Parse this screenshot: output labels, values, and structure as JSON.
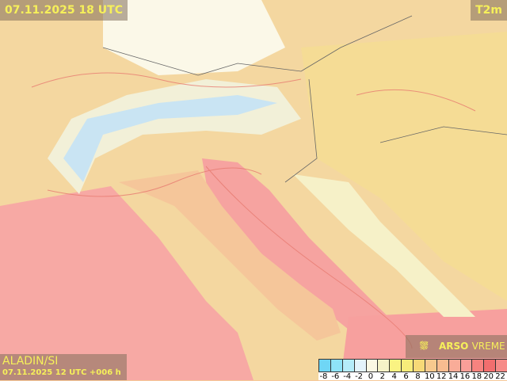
{
  "title": "07.11.2025 18 UTC",
  "parameter": "T2m",
  "model": {
    "name": "ALADIN/SI",
    "run": "07.11.2025 12 UTC +006 h"
  },
  "brand": {
    "icon": "arso-logo-icon",
    "bold": "ARSO",
    "light": "VREME"
  },
  "legend": {
    "labels": [
      "-8",
      "-6",
      "-4",
      "-2",
      "0",
      "2",
      "4",
      "6",
      "8",
      "10",
      "12",
      "14",
      "16",
      "18",
      "20",
      "22"
    ],
    "colors": [
      "#6fd6f5",
      "#8ee3f8",
      "#b5ecfa",
      "#e4f3fb",
      "#fbf8e4",
      "#f5f2c8",
      "#faf382",
      "#f7ec7a",
      "#f7d977",
      "#f7c98e",
      "#f8bc90",
      "#f9ac98",
      "#f99f98",
      "#f7837f",
      "#f26e6e",
      "#f68b88"
    ]
  }
}
